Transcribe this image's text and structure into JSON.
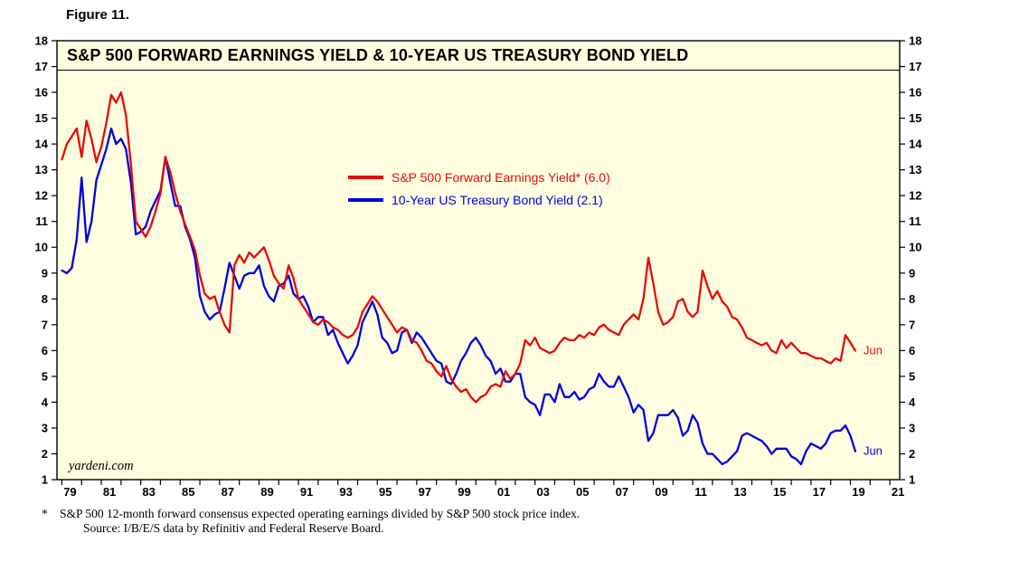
{
  "figure_label": "Figure 11.",
  "title": "S&P 500 FORWARD EARNINGS YIELD & 10-YEAR US TREASURY BOND YIELD",
  "watermark": "yardeni.com",
  "footnote_star": "*",
  "footnote_line1": "S&P 500 12-month forward consensus expected operating earnings divided by S&P 500 stock price index.",
  "footnote_line2": "Source: I/B/E/S data by Refinitiv and Federal Reserve Board.",
  "colors": {
    "plot_bg": "#FFFEE1",
    "red": "#E60A0A",
    "blue": "#0000E0",
    "axis": "#000000"
  },
  "chart_data": {
    "type": "line",
    "title": "S&P 500 FORWARD EARNINGS YIELD & 10-YEAR US TREASURY BOND YIELD",
    "x_start": 1979.0,
    "x_step": 0.25,
    "xlim": [
      1978.75,
      2021.5
    ],
    "ylim": [
      1,
      18
    ],
    "grid": false,
    "legend_position": "upper-center",
    "y_ticks": [
      1,
      2,
      3,
      4,
      5,
      6,
      7,
      8,
      9,
      10,
      11,
      12,
      13,
      14,
      15,
      16,
      17,
      18
    ],
    "x_tick_labels": [
      "79",
      "81",
      "83",
      "85",
      "87",
      "89",
      "91",
      "93",
      "95",
      "97",
      "99",
      "01",
      "03",
      "05",
      "07",
      "09",
      "11",
      "13",
      "15",
      "17",
      "19",
      "21"
    ],
    "series": [
      {
        "id": "forward-earnings-yield",
        "name": "S&P 500 Forward Earnings Yield* (6.0)",
        "color_key": "red",
        "latest_value": 6.0,
        "values": [
          13.4,
          14.0,
          14.3,
          14.6,
          13.5,
          14.9,
          14.2,
          13.3,
          13.9,
          14.8,
          15.9,
          15.6,
          16.0,
          15.1,
          13.2,
          11.0,
          10.7,
          10.4,
          10.8,
          11.4,
          12.1,
          13.5,
          12.9,
          12.1,
          11.4,
          10.9,
          10.4,
          9.9,
          8.9,
          8.2,
          8.0,
          8.1,
          7.5,
          7.0,
          6.7,
          9.3,
          9.7,
          9.4,
          9.8,
          9.6,
          9.8,
          10.0,
          9.5,
          8.9,
          8.6,
          8.4,
          9.3,
          8.8,
          8.0,
          7.7,
          7.4,
          7.1,
          7.0,
          7.2,
          7.1,
          6.9,
          6.8,
          6.6,
          6.5,
          6.6,
          6.9,
          7.5,
          7.8,
          8.1,
          7.9,
          7.6,
          7.3,
          7.0,
          6.7,
          6.9,
          6.8,
          6.4,
          6.3,
          6.0,
          5.6,
          5.5,
          5.2,
          5.0,
          5.4,
          4.9,
          4.6,
          4.4,
          4.5,
          4.2,
          4.0,
          4.2,
          4.3,
          4.6,
          4.7,
          4.6,
          5.2,
          4.9,
          5.1,
          5.5,
          6.4,
          6.2,
          6.5,
          6.1,
          6.0,
          5.9,
          6.0,
          6.3,
          6.5,
          6.4,
          6.4,
          6.6,
          6.5,
          6.7,
          6.6,
          6.9,
          7.0,
          6.8,
          6.7,
          6.6,
          7.0,
          7.2,
          7.4,
          7.2,
          8.0,
          9.6,
          8.6,
          7.5,
          7.0,
          7.1,
          7.3,
          7.9,
          8.0,
          7.5,
          7.3,
          7.5,
          9.1,
          8.5,
          8.0,
          8.3,
          7.9,
          7.7,
          7.3,
          7.2,
          6.9,
          6.5,
          6.4,
          6.3,
          6.2,
          6.3,
          6.0,
          5.9,
          6.4,
          6.1,
          6.3,
          6.1,
          5.9,
          5.9,
          5.8,
          5.7,
          5.7,
          5.6,
          5.5,
          5.7,
          5.6,
          6.6,
          6.3,
          6.0
        ]
      },
      {
        "id": "treasury-bond-yield",
        "name": "10-Year US Treasury Bond Yield (2.1)",
        "color_key": "blue",
        "latest_value": 2.1,
        "values": [
          9.1,
          9.0,
          9.2,
          10.3,
          12.7,
          10.2,
          11.0,
          12.6,
          13.2,
          13.8,
          14.6,
          14.0,
          14.2,
          13.8,
          12.5,
          10.5,
          10.6,
          10.8,
          11.4,
          11.8,
          12.2,
          13.5,
          12.5,
          11.6,
          11.6,
          10.8,
          10.3,
          9.6,
          8.1,
          7.5,
          7.2,
          7.4,
          7.5,
          8.4,
          9.4,
          8.9,
          8.4,
          8.9,
          9.0,
          9.0,
          9.3,
          8.5,
          8.1,
          7.9,
          8.5,
          8.6,
          8.9,
          8.2,
          8.0,
          8.1,
          7.7,
          7.1,
          7.3,
          7.3,
          6.6,
          6.8,
          6.3,
          5.9,
          5.5,
          5.8,
          6.2,
          7.1,
          7.5,
          7.9,
          7.4,
          6.5,
          6.3,
          5.9,
          6.0,
          6.7,
          6.8,
          6.3,
          6.7,
          6.5,
          6.2,
          5.9,
          5.6,
          5.5,
          4.8,
          4.7,
          5.1,
          5.6,
          5.9,
          6.3,
          6.5,
          6.2,
          5.8,
          5.6,
          5.1,
          5.3,
          4.8,
          4.8,
          5.1,
          5.1,
          4.2,
          4.0,
          3.9,
          3.5,
          4.3,
          4.3,
          4.0,
          4.7,
          4.2,
          4.2,
          4.4,
          4.1,
          4.2,
          4.5,
          4.6,
          5.1,
          4.8,
          4.6,
          4.6,
          5.0,
          4.6,
          4.2,
          3.6,
          3.9,
          3.7,
          2.5,
          2.8,
          3.5,
          3.5,
          3.5,
          3.7,
          3.4,
          2.7,
          2.9,
          3.5,
          3.2,
          2.4,
          2.0,
          2.0,
          1.8,
          1.6,
          1.7,
          1.9,
          2.1,
          2.7,
          2.8,
          2.7,
          2.6,
          2.5,
          2.3,
          2.0,
          2.2,
          2.2,
          2.2,
          1.9,
          1.8,
          1.6,
          2.1,
          2.4,
          2.3,
          2.2,
          2.4,
          2.8,
          2.9,
          2.9,
          3.1,
          2.7,
          2.1
        ]
      }
    ],
    "end_labels": [
      {
        "text": "Jun",
        "series": 0,
        "value": 6.0
      },
      {
        "text": "Jun",
        "series": 1,
        "value": 2.1
      }
    ]
  }
}
